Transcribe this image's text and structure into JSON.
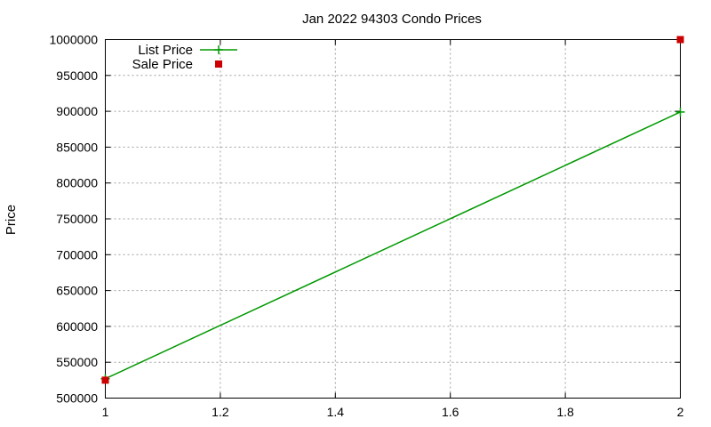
{
  "chart_data": {
    "type": "line",
    "title": "Jan 2022 94303 Condo Prices",
    "xlabel": "",
    "ylabel": "Price",
    "xlim": [
      1,
      2
    ],
    "ylim": [
      500000,
      1000000
    ],
    "x_ticks": [
      "1",
      "1.2",
      "1.4",
      "1.6",
      "1.8",
      "2"
    ],
    "y_ticks": [
      "500000",
      "550000",
      "600000",
      "650000",
      "700000",
      "750000",
      "800000",
      "850000",
      "900000",
      "950000",
      "1000000"
    ],
    "grid": true,
    "legend_position": "top-left",
    "series": [
      {
        "name": "List Price",
        "style": "linespoints",
        "marker": "plus",
        "color": "#009900",
        "x": [
          1,
          2
        ],
        "y": [
          527000,
          899000
        ]
      },
      {
        "name": "Sale Price",
        "style": "points",
        "marker": "square",
        "color": "#cc0000",
        "x": [
          1,
          2
        ],
        "y": [
          525000,
          1000000
        ]
      }
    ]
  }
}
